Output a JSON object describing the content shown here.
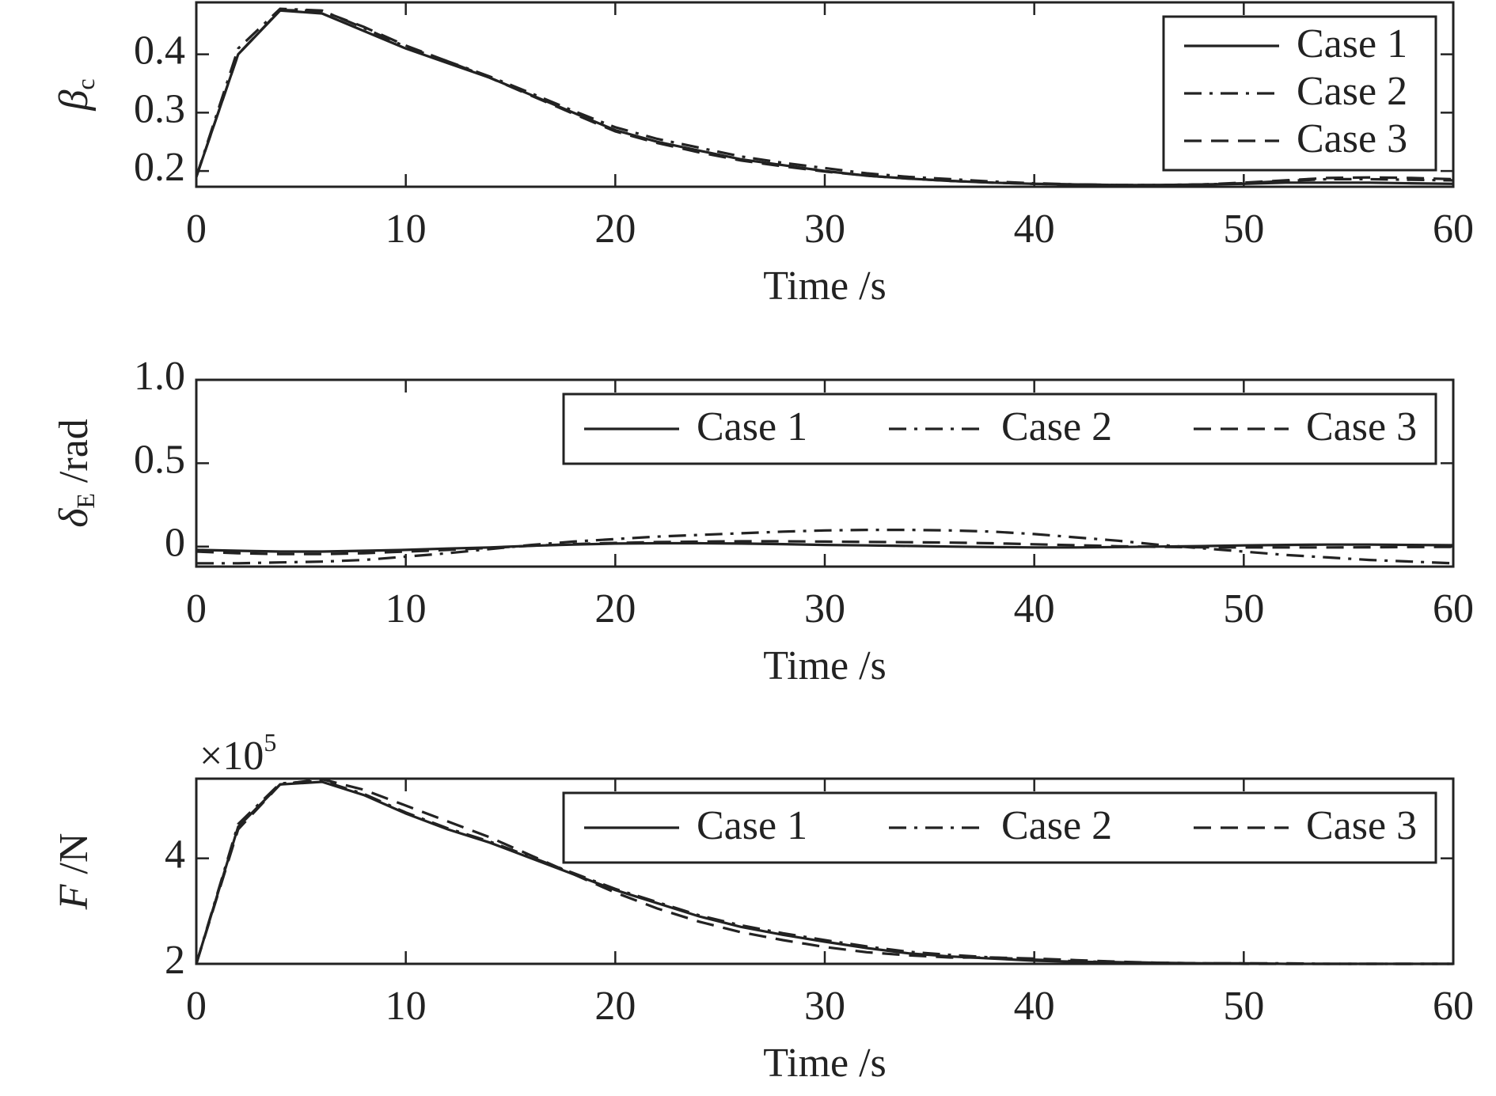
{
  "chart_data": [
    {
      "type": "line",
      "xlabel": "Time /s",
      "ylabel": {
        "main": "β",
        "sub": "c"
      },
      "x": [
        0,
        2,
        4,
        6,
        8,
        10,
        12,
        14,
        16,
        18,
        20,
        22,
        24,
        26,
        28,
        30,
        32,
        34,
        36,
        38,
        40,
        42,
        44,
        46,
        48,
        50,
        52,
        54,
        56,
        58,
        60
      ],
      "xlim": [
        0,
        60
      ],
      "xticks": [
        0,
        10,
        20,
        30,
        40,
        50,
        60
      ],
      "ylim": [
        0.173,
        0.489
      ],
      "yticks": [
        0.2,
        0.3,
        0.4
      ],
      "legend": "upper right",
      "legend_columns": 1,
      "series": [
        {
          "name": "Case 1",
          "color": "#222222",
          "dash": "solid",
          "values": [
            0.19,
            0.4,
            0.475,
            0.47,
            0.44,
            0.41,
            0.385,
            0.36,
            0.33,
            0.3,
            0.27,
            0.25,
            0.235,
            0.22,
            0.21,
            0.2,
            0.192,
            0.187,
            0.183,
            0.18,
            0.178,
            0.177,
            0.176,
            0.176,
            0.177,
            0.178,
            0.18,
            0.18,
            0.18,
            0.179,
            0.178
          ]
        },
        {
          "name": "Case 2",
          "color": "#222222",
          "dash": "dashdot",
          "values": [
            0.19,
            0.41,
            0.478,
            0.475,
            0.445,
            0.413,
            0.388,
            0.362,
            0.333,
            0.303,
            0.275,
            0.255,
            0.24,
            0.225,
            0.214,
            0.205,
            0.196,
            0.19,
            0.186,
            0.182,
            0.179,
            0.177,
            0.176,
            0.176,
            0.177,
            0.179,
            0.183,
            0.186,
            0.186,
            0.185,
            0.184
          ]
        },
        {
          "name": "Case 3",
          "color": "#222222",
          "dash": "dashed",
          "values": [
            0.19,
            0.4,
            0.476,
            0.474,
            0.447,
            0.415,
            0.388,
            0.36,
            0.329,
            0.298,
            0.268,
            0.248,
            0.232,
            0.218,
            0.208,
            0.199,
            0.192,
            0.187,
            0.183,
            0.18,
            0.178,
            0.177,
            0.176,
            0.176,
            0.177,
            0.18,
            0.184,
            0.188,
            0.189,
            0.188,
            0.186
          ]
        }
      ]
    },
    {
      "type": "line",
      "xlabel": "Time /s",
      "ylabel": {
        "main": "δ",
        "sub": "E",
        "unit": " /rad"
      },
      "x": [
        0,
        2,
        4,
        6,
        8,
        10,
        12,
        14,
        16,
        18,
        20,
        22,
        24,
        26,
        28,
        30,
        32,
        34,
        36,
        38,
        40,
        42,
        44,
        46,
        48,
        50,
        52,
        54,
        56,
        58,
        60
      ],
      "xlim": [
        0,
        60
      ],
      "xticks": [
        0,
        10,
        20,
        30,
        40,
        50,
        60
      ],
      "ylim": [
        -0.12,
        1.0
      ],
      "yticks": [
        0,
        {
          "value": 0.5,
          "label": "0.5"
        },
        {
          "value": 1.0,
          "label": "1.0"
        }
      ],
      "legend": "upper right",
      "legend_columns": 3,
      "series": [
        {
          "name": "Case 1",
          "color": "#222222",
          "dash": "solid",
          "values": [
            -0.02,
            -0.025,
            -0.03,
            -0.03,
            -0.025,
            -0.02,
            -0.012,
            -0.005,
            0.005,
            0.012,
            0.018,
            0.02,
            0.02,
            0.018,
            0.015,
            0.01,
            0.007,
            0.004,
            0.0,
            -0.003,
            -0.005,
            -0.005,
            -0.003,
            0,
            0.003,
            0.007,
            0.01,
            0.012,
            0.012,
            0.01,
            0.008
          ]
        },
        {
          "name": "Case 2",
          "color": "#222222",
          "dash": "dashdot",
          "values": [
            -0.1,
            -0.1,
            -0.095,
            -0.09,
            -0.08,
            -0.06,
            -0.04,
            -0.015,
            0.01,
            0.03,
            0.045,
            0.06,
            0.07,
            0.08,
            0.09,
            0.097,
            0.1,
            0.1,
            0.097,
            0.09,
            0.075,
            0.055,
            0.035,
            0.01,
            -0.01,
            -0.03,
            -0.05,
            -0.065,
            -0.08,
            -0.09,
            -0.1
          ]
        },
        {
          "name": "Case 3",
          "color": "#222222",
          "dash": "dashed",
          "values": [
            -0.03,
            -0.04,
            -0.045,
            -0.045,
            -0.04,
            -0.03,
            -0.02,
            -0.008,
            0.005,
            0.015,
            0.022,
            0.027,
            0.03,
            0.032,
            0.032,
            0.03,
            0.028,
            0.026,
            0.024,
            0.02,
            0.014,
            0.008,
            0.002,
            -0.002,
            -0.004,
            -0.005,
            -0.005,
            -0.005,
            -0.004,
            -0.003,
            -0.002
          ]
        }
      ]
    },
    {
      "type": "line",
      "xlabel": "Time /s",
      "ylabel": {
        "main": "F",
        "unit": " /N"
      },
      "y_multiplier": {
        "base": "×10",
        "exponent": "5"
      },
      "x": [
        0,
        2,
        4,
        6,
        8,
        10,
        12,
        14,
        16,
        18,
        20,
        22,
        24,
        26,
        28,
        30,
        32,
        34,
        36,
        38,
        40,
        42,
        44,
        46,
        48,
        50,
        52,
        54,
        56,
        58,
        60
      ],
      "xlim": [
        0,
        60
      ],
      "xticks": [
        0,
        10,
        20,
        30,
        40,
        50,
        60
      ],
      "ylim": [
        2,
        5.51
      ],
      "yticks": [
        2,
        4
      ],
      "legend": "upper right",
      "legend_columns": 3,
      "series": [
        {
          "name": "Case 1",
          "color": "#222222",
          "dash": "solid",
          "values": [
            2.0,
            4.6,
            5.4,
            5.45,
            5.2,
            4.85,
            4.55,
            4.3,
            4.0,
            3.7,
            3.4,
            3.15,
            2.9,
            2.7,
            2.55,
            2.42,
            2.3,
            2.2,
            2.14,
            2.1,
            2.06,
            2.04,
            2.03,
            2.02,
            2.01,
            2.01,
            2.0,
            2.0,
            2.0,
            2.0,
            2.0
          ]
        },
        {
          "name": "Case 2",
          "color": "#222222",
          "dash": "dashdot",
          "values": [
            2.0,
            4.65,
            5.42,
            5.47,
            5.22,
            4.87,
            4.57,
            4.32,
            4.02,
            3.72,
            3.42,
            3.17,
            2.92,
            2.73,
            2.58,
            2.45,
            2.33,
            2.23,
            2.17,
            2.12,
            2.08,
            2.05,
            2.03,
            2.02,
            2.01,
            2.01,
            2.01,
            2.0,
            2.0,
            2.0,
            2.0
          ]
        },
        {
          "name": "Case 3",
          "color": "#222222",
          "dash": "dashed",
          "values": [
            2.0,
            4.55,
            5.4,
            5.5,
            5.3,
            5.0,
            4.7,
            4.4,
            4.05,
            3.7,
            3.35,
            3.05,
            2.8,
            2.6,
            2.45,
            2.32,
            2.22,
            2.16,
            2.12,
            2.12,
            2.1,
            2.07,
            2.04,
            2.02,
            2.01,
            2.0,
            2.0,
            2.0,
            2.0,
            2.0,
            2.0
          ]
        }
      ]
    }
  ]
}
